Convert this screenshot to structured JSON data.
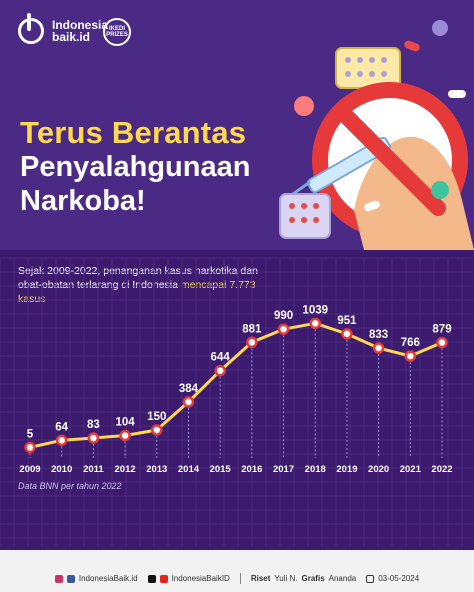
{
  "brand": {
    "name_line1": "Indonesia",
    "name_line2": "baik.id",
    "badge_text": "IKEDI PRIZES"
  },
  "title": {
    "line1": "Terus Berantas",
    "line2": "Penyalahgunaan",
    "line3": "Narkoba!"
  },
  "intro": {
    "text": "Sejak 2009-2022, penanganan kasus narkotika dan obat-obatan terlarang di Indonesia ",
    "highlight": "mencapai 7.773 kasus"
  },
  "source": "Data BNN per tahun 2022",
  "colors": {
    "hero_bg": "#4b2a86",
    "chart_bg": "#3c1a6d",
    "line": "#ffd84d",
    "accent": "#e63a3a",
    "marker": "#ffffff"
  },
  "icons": [
    "instagram-icon",
    "facebook-icon",
    "x-icon",
    "youtube-icon",
    "calendar-icon",
    "no-drugs-icon",
    "pill-icon",
    "syringe-icon"
  ],
  "footer": {
    "handle1": "IndonesiaBaik.id",
    "handle2": "IndonesiaBaikID",
    "research_label": "Riset",
    "research_name": "Yuli N.",
    "graphic_label": "Grafis",
    "graphic_name": "Ananda",
    "date": "03-05-2024"
  },
  "chart_data": {
    "type": "line",
    "title": "",
    "xlabel": "",
    "ylabel": "",
    "x": [
      "2009",
      "2010",
      "2011",
      "2012",
      "2013",
      "2014",
      "2015",
      "2016",
      "2017",
      "2018",
      "2019",
      "2020",
      "2021",
      "2022"
    ],
    "values": [
      5,
      64,
      83,
      104,
      150,
      384,
      644,
      881,
      990,
      1039,
      951,
      833,
      766,
      879
    ],
    "labels": [
      "5",
      "64",
      "83",
      "104",
      "150",
      "384",
      "644",
      "881",
      "990",
      "1039",
      "951",
      "833",
      "766",
      "879"
    ],
    "ylim": [
      0,
      1100
    ],
    "grid": true,
    "legend": "none"
  }
}
